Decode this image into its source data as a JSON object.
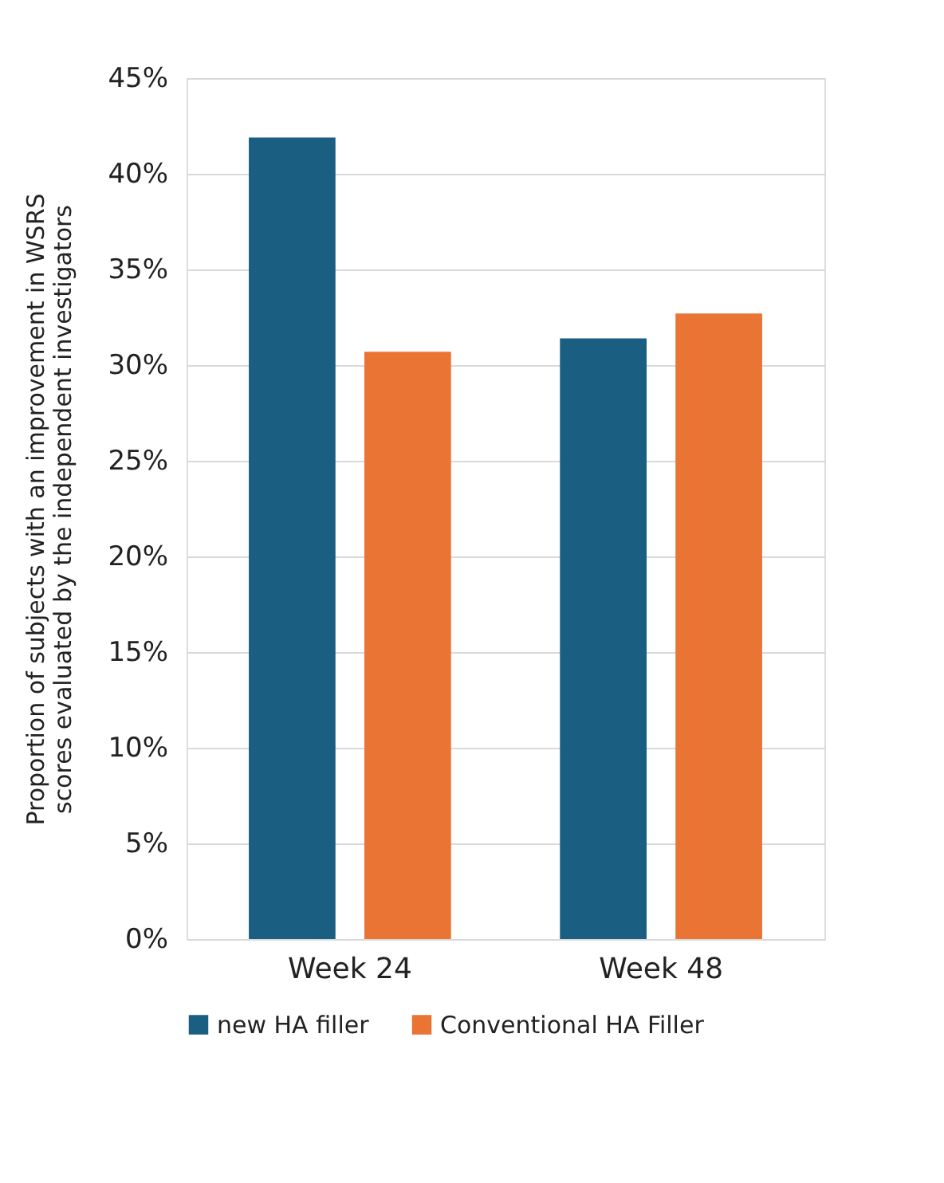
{
  "chart_data": {
    "type": "bar",
    "ylabel": "Proportion of subjects with an improvement in WSRS\nscores evaluated by the independent investigators",
    "categories": [
      "Week 24",
      "Week 48"
    ],
    "series": [
      {
        "name": "new HA filler",
        "color": "#1a5f82",
        "values": [
          41.9,
          31.4
        ]
      },
      {
        "name": "Conventional HA Filler",
        "color": "#e97434",
        "values": [
          30.7,
          32.7
        ]
      }
    ],
    "ylim": [
      0,
      45
    ],
    "yticks": [
      {
        "value": 0,
        "label": "0%"
      },
      {
        "value": 5,
        "label": "5%"
      },
      {
        "value": 10,
        "label": "10%"
      },
      {
        "value": 15,
        "label": "15%"
      },
      {
        "value": 20,
        "label": "20%"
      },
      {
        "value": 25,
        "label": "25%"
      },
      {
        "value": 30,
        "label": "30%"
      },
      {
        "value": 35,
        "label": "35%"
      },
      {
        "value": 40,
        "label": "40%"
      },
      {
        "value": 45,
        "label": "45%"
      }
    ],
    "grid": "y",
    "legend": "bottom"
  }
}
